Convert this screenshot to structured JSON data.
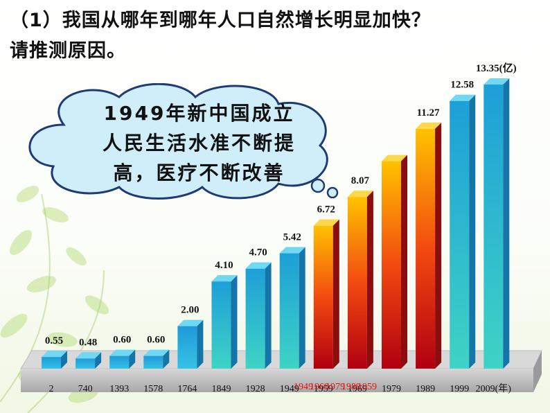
{
  "question": {
    "line1": "（1）我国从哪年到哪年人口自然增长明显加快？",
    "line2": "请推测原因。"
  },
  "callout": {
    "line1": "1949年新中国成立",
    "line2": "人民生活水准不断提",
    "line3": "高，医疗不断改善"
  },
  "colors": {
    "blue_top": "#1f9ad8",
    "blue_bottom": "#35c2e6",
    "teal_top": "#1d9fd8",
    "teal_bottom": "#3fd3c5",
    "red_top": "#ffc200",
    "red_bottom": "#b00010",
    "base_gray": "#b9b9b9",
    "highlight_red": "#e8120c"
  },
  "chart_data": {
    "type": "bar",
    "categories": [
      "2",
      "740",
      "1393",
      "1578",
      "1764",
      "1849",
      "1928",
      "1949",
      "1959",
      "1969",
      "1979",
      "1989",
      "1999",
      "2009"
    ],
    "values": [
      0.55,
      0.48,
      0.6,
      0.6,
      2.0,
      4.1,
      4.7,
      5.42,
      6.72,
      8.07,
      9.75,
      11.27,
      12.58,
      13.35
    ],
    "value_labels": [
      "0.55",
      "0.48",
      "0.60",
      "0.60",
      "2.00",
      "4.10",
      "4.70",
      "5.42",
      "6.72",
      "8.07",
      "",
      "11.27",
      "12.58",
      "13.35"
    ],
    "value_unit": "(亿)",
    "x_unit": "(年)",
    "highlighted_categories": [
      "1949",
      "1959",
      "1969",
      "1979",
      "1989"
    ],
    "highlighted_overlay_text": [
      "1949",
      "1969",
      "1979",
      "1989",
      "1959"
    ],
    "title": "",
    "xlabel": "",
    "ylabel": "",
    "ylim": [
      0,
      13.35
    ],
    "grid": false,
    "legend": "none"
  }
}
